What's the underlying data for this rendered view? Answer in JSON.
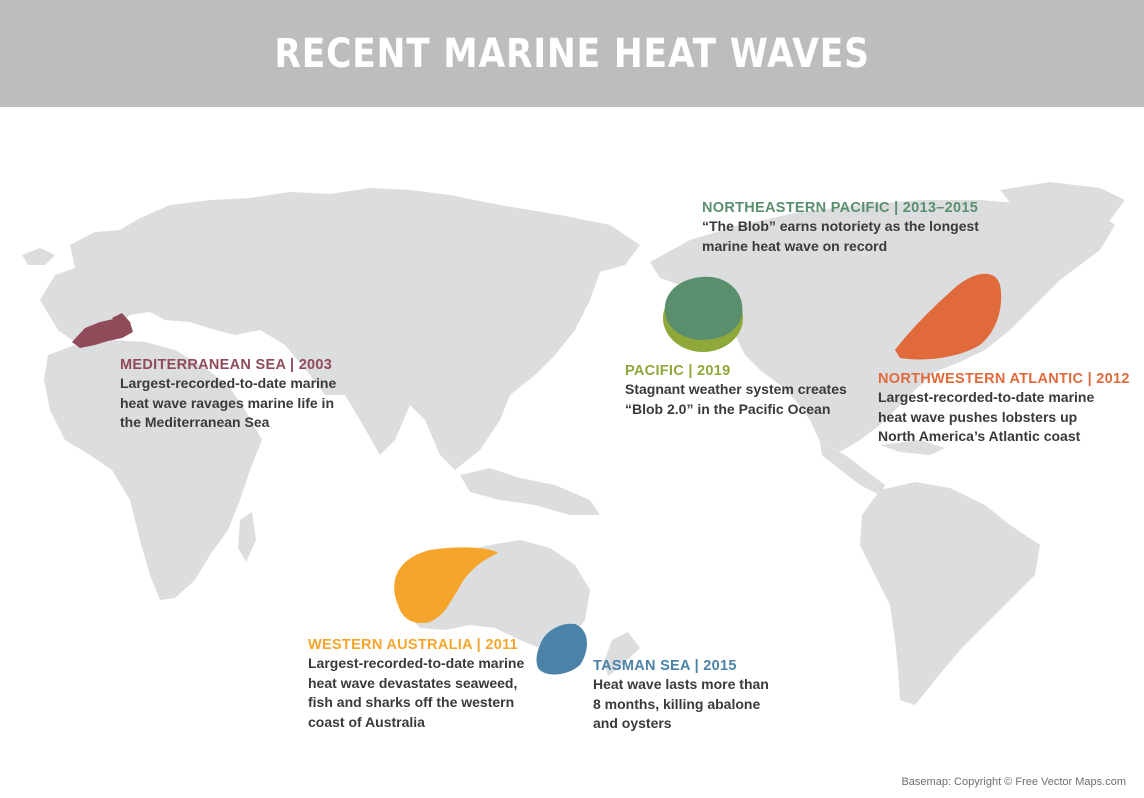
{
  "title": "RECENT MARINE HEAT WAVES",
  "colors": {
    "header_bg": "#bcbdbf",
    "land": "#dcdddf",
    "mediterranean": "#8f4b5a",
    "northeastern_pacific": "#5a8f6e",
    "pacific_2019": "#8ea83a",
    "northwestern_atlantic": "#e06a3c",
    "western_australia": "#f5a52b",
    "tasman_sea": "#4a82a8"
  },
  "events": {
    "mediterranean": {
      "heading": "MEDITERRANEAN SEA | 2003",
      "line1": "Largest-recorded-to-date marine",
      "line2": "heat wave ravages marine life in",
      "line3": "the Mediterranean Sea"
    },
    "northeastern_pacific": {
      "heading": "NORTHEASTERN PACIFIC  | 2013–2015",
      "line1": "“The Blob” earns notoriety as the longest",
      "line2": "marine heat wave on record"
    },
    "pacific_2019": {
      "heading": "PACIFIC | 2019",
      "line1": "Stagnant weather system creates",
      "line2": "“Blob 2.0” in the Pacific Ocean"
    },
    "northwestern_atlantic": {
      "heading": "NORTHWESTERN ATLANTIC | 2012",
      "line1": "Largest-recorded-to-date marine",
      "line2": "heat wave pushes lobsters up",
      "line3": "North America’s Atlantic coast"
    },
    "western_australia": {
      "heading": "WESTERN AUSTRALIA | 2011",
      "line1": "Largest-recorded-to-date marine",
      "line2": "heat wave devastates seaweed,",
      "line3": "fish and sharks off the western",
      "line4": "coast of Australia"
    },
    "tasman_sea": {
      "heading": "TASMAN SEA | 2015",
      "line1": "Heat wave lasts more than",
      "line2": "8 months, killing abalone",
      "line3": "and oysters"
    }
  },
  "credit": "Basemap: Copyright © Free Vector Maps.com"
}
